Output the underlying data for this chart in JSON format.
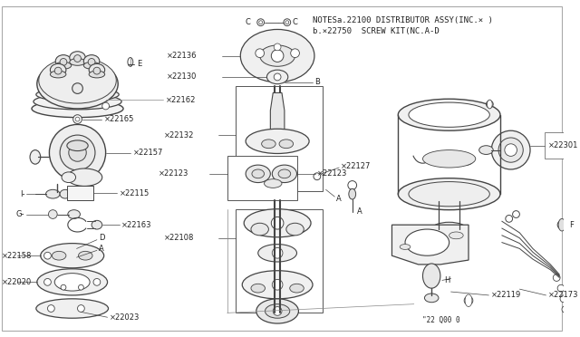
{
  "bg_color": "#ffffff",
  "line_color": "#444444",
  "text_color": "#222222",
  "notes_line1": "NOTESa.22100 DISTRIBUTOR ASSY(INC.× )",
  "notes_line2": "b.×22750  SCREW KIT(NC.A-D",
  "diagram_code": "\"22 Q00 0"
}
